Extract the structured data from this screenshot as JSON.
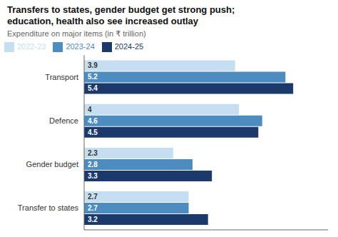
{
  "chart_data": {
    "type": "bar",
    "orientation": "horizontal",
    "title": "Transfers to states, gender budget get strong push;\neducation, health also see increased outlay",
    "subtitle": "Expenditure on major items (in ₹ trillion)",
    "categories": [
      "Transport",
      "Defence",
      "Gender budget",
      "Transfer to states"
    ],
    "series": [
      {
        "name": "2022-23",
        "color": "#c6dff0",
        "values": [
          3.9,
          4.0,
          2.3,
          2.7
        ],
        "value_labels": [
          "3.9",
          "4",
          "2.3",
          "2.7"
        ]
      },
      {
        "name": "2023-24",
        "color": "#4d8cc0",
        "values": [
          5.2,
          4.6,
          2.8,
          2.7
        ],
        "value_labels": [
          "5.2",
          "4.6",
          "2.8",
          "2.7"
        ]
      },
      {
        "name": "2024-25",
        "color": "#1b3a6b",
        "values": [
          5.4,
          4.5,
          3.3,
          3.2
        ],
        "value_labels": [
          "5.4",
          "4.5",
          "3.3",
          "3.2"
        ]
      }
    ],
    "xlim": [
      0,
      6.3
    ],
    "data_labels": true,
    "tick_labels": "y",
    "legend": "upper left",
    "grid": false
  }
}
